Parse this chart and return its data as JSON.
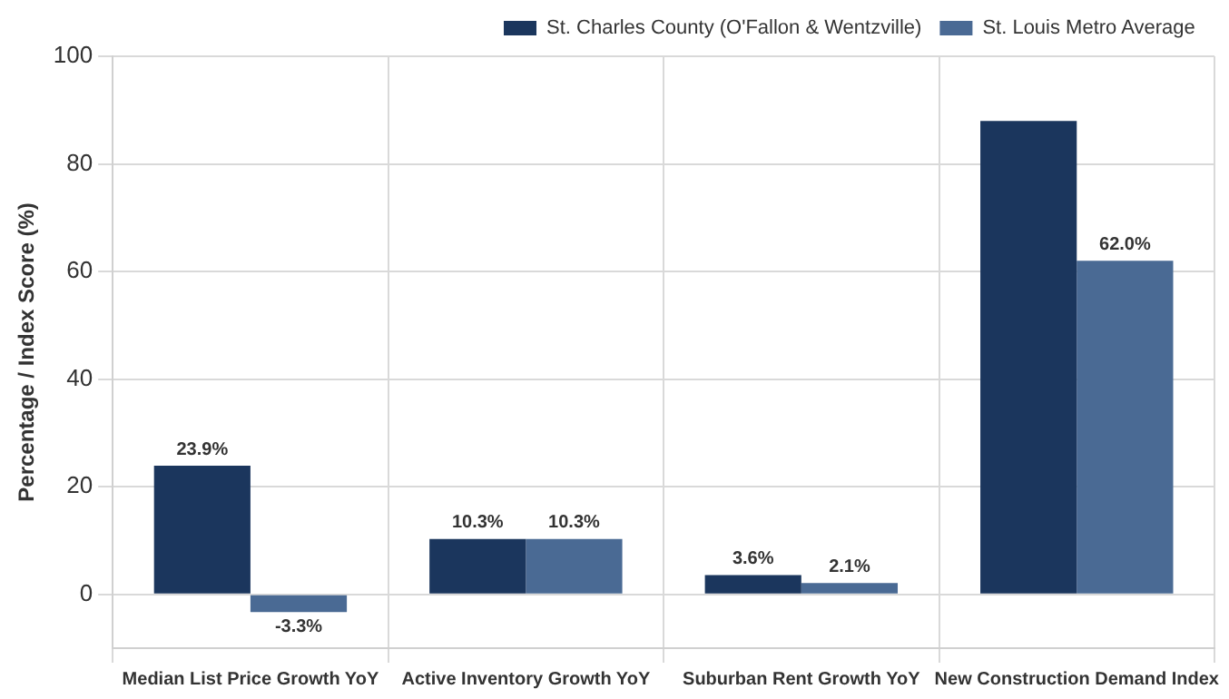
{
  "chart_data": {
    "type": "bar",
    "ylabel": "Percentage / Index Score (%)",
    "categories": [
      "Median List Price Growth YoY",
      "Active Inventory Growth YoY",
      "Suburban Rent Growth YoY",
      "New Construction Demand Index"
    ],
    "series": [
      {
        "name": "St. Charles County (O'Fallon & Wentzville)",
        "color": "#1b365d",
        "values": [
          23.9,
          10.3,
          3.6,
          88
        ],
        "value_labels": [
          "23.9%",
          "10.3%",
          "3.6%",
          null
        ]
      },
      {
        "name": "St. Louis Metro Average",
        "color": "#4a6a94",
        "values": [
          -3.3,
          10.3,
          2.1,
          62.0
        ],
        "value_labels": [
          "-3.3%",
          "10.3%",
          "2.1%",
          "62.0%"
        ]
      }
    ],
    "ylim": [
      -10,
      100
    ],
    "yticks": [
      0,
      20,
      40,
      60,
      80,
      100
    ],
    "grid": true,
    "legend": "top right"
  }
}
